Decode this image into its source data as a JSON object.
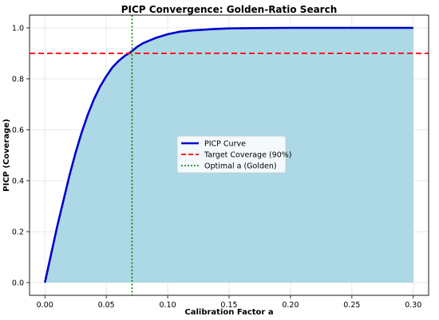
{
  "chart_data": {
    "type": "line",
    "title": "PICP Convergence: Golden-Ratio Search",
    "xlabel": "Calibration Factor a",
    "ylabel": "PICP (Coverage)",
    "xlim": [
      -0.0125,
      0.3125
    ],
    "ylim": [
      -0.05,
      1.05
    ],
    "xticks": [
      0.0,
      0.05,
      0.1,
      0.15,
      0.2,
      0.25,
      0.3
    ],
    "xtick_labels": [
      "0.00",
      "0.05",
      "0.10",
      "0.15",
      "0.20",
      "0.25",
      "0.30"
    ],
    "yticks": [
      0.0,
      0.2,
      0.4,
      0.6,
      0.8,
      1.0
    ],
    "ytick_labels": [
      "0.0",
      "0.2",
      "0.4",
      "0.6",
      "0.8",
      "1.0"
    ],
    "grid": true,
    "legend_position": "center",
    "series": [
      {
        "name": "PICP Curve",
        "style": "solid",
        "color": "#0000cc",
        "fill_color": "#add8e6",
        "x": [
          0.0,
          0.005,
          0.01,
          0.015,
          0.02,
          0.025,
          0.03,
          0.035,
          0.04,
          0.045,
          0.05,
          0.055,
          0.06,
          0.065,
          0.07,
          0.075,
          0.08,
          0.09,
          0.1,
          0.11,
          0.12,
          0.13,
          0.14,
          0.15,
          0.17,
          0.2,
          0.25,
          0.3
        ],
        "y": [
          0.0,
          0.11,
          0.22,
          0.32,
          0.42,
          0.51,
          0.59,
          0.66,
          0.72,
          0.77,
          0.81,
          0.845,
          0.87,
          0.89,
          0.905,
          0.925,
          0.94,
          0.96,
          0.975,
          0.985,
          0.99,
          0.993,
          0.996,
          0.998,
          0.999,
          1.0,
          1.0,
          1.0
        ]
      }
    ],
    "reference_lines": [
      {
        "name": "Target Coverage (90%)",
        "orientation": "horizontal",
        "value": 0.9,
        "color": "#ff0000",
        "style": "dashed"
      },
      {
        "name": "Optimal a (Golden)",
        "orientation": "vertical",
        "value": 0.071,
        "color": "#008000",
        "style": "dotted"
      }
    ]
  }
}
